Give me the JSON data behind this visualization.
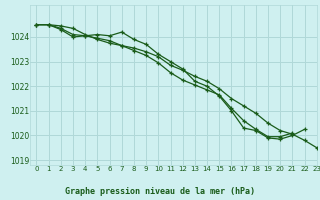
{
  "background_color": "#cff0f0",
  "grid_color": "#b0d8d8",
  "line_color": "#1a5c1a",
  "title": "Graphe pression niveau de la mer (hPa)",
  "xlim": [
    -0.5,
    23
  ],
  "ylim": [
    1018.8,
    1025.3
  ],
  "yticks": [
    1019,
    1020,
    1021,
    1022,
    1023,
    1024
  ],
  "xticks": [
    0,
    1,
    2,
    3,
    4,
    5,
    6,
    7,
    8,
    9,
    10,
    11,
    12,
    13,
    14,
    15,
    16,
    17,
    18,
    19,
    20,
    21,
    22,
    23
  ],
  "series1": [
    1024.5,
    1024.5,
    1024.3,
    1024.0,
    1024.05,
    1024.1,
    1024.05,
    1024.2,
    1023.9,
    1023.7,
    1023.3,
    1023.0,
    1022.7,
    1022.2,
    1022.0,
    1021.6,
    1021.0,
    1020.3,
    1020.2,
    1019.9,
    1019.85,
    1020.0,
    1020.25,
    null
  ],
  "series2": [
    1024.5,
    1024.5,
    1024.35,
    1024.1,
    1024.05,
    1023.95,
    1023.85,
    1023.65,
    1023.45,
    1023.25,
    1022.95,
    1022.55,
    1022.25,
    1022.05,
    1021.85,
    1021.65,
    1021.1,
    1020.6,
    1020.25,
    1019.95,
    1019.95,
    1020.1,
    null,
    null
  ],
  "series3": [
    1024.5,
    1024.5,
    1024.45,
    1024.35,
    1024.1,
    1023.9,
    1023.75,
    1023.65,
    1023.55,
    1023.4,
    1023.2,
    1022.85,
    1022.65,
    1022.4,
    1022.2,
    1021.9,
    1021.5,
    1021.2,
    1020.9,
    1020.5,
    1020.2,
    1020.05,
    1019.8,
    1019.5
  ]
}
